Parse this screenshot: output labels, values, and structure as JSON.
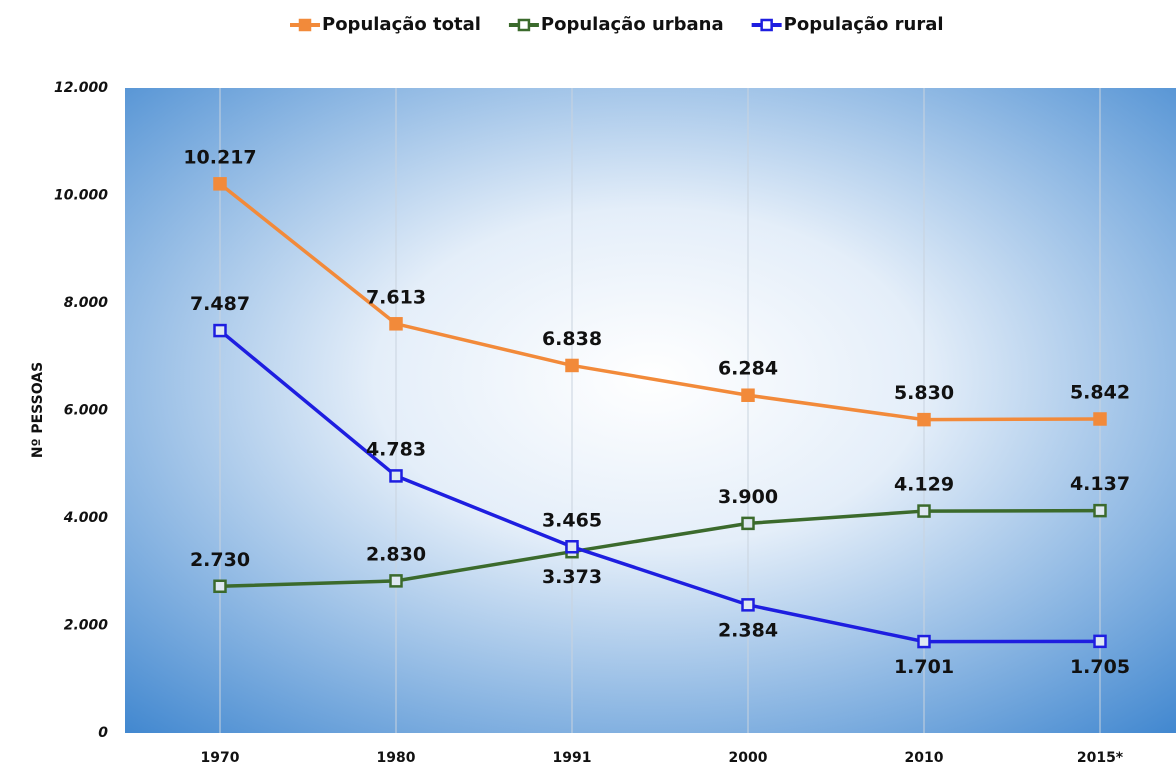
{
  "chart_data": {
    "type": "line",
    "y_label": "Nº PESSOAS",
    "categories": [
      "1970",
      "1980",
      "1991",
      "2000",
      "2010",
      "2015*"
    ],
    "series": [
      {
        "name": "População total",
        "color": "#f28a3a",
        "values": [
          10217,
          7613,
          6838,
          6284,
          5830,
          5842
        ],
        "value_labels": [
          "10.217",
          "7.613",
          "6.838",
          "6.284",
          "5.830",
          "5.842"
        ]
      },
      {
        "name": "População urbana",
        "color": "#3b6a2c",
        "values": [
          2730,
          2830,
          3373,
          3900,
          4129,
          4137
        ],
        "value_labels": [
          "2.730",
          "2.830",
          "3.373",
          "3.900",
          "4.129",
          "4.137"
        ]
      },
      {
        "name": "População rural",
        "color": "#1e1ee0",
        "values": [
          7487,
          4783,
          3465,
          2384,
          1701,
          1705
        ],
        "value_labels": [
          "7.487",
          "4.783",
          "3.465",
          "2.384",
          "1.701",
          "1.705"
        ]
      }
    ],
    "ylim": [
      0,
      12000
    ],
    "yticks": [
      {
        "value": 0,
        "label": "0"
      },
      {
        "value": 2000,
        "label": "2.000"
      },
      {
        "value": 4000,
        "label": "4.000"
      },
      {
        "value": 6000,
        "label": "6.000"
      },
      {
        "value": 8000,
        "label": "8.000"
      },
      {
        "value": 10000,
        "label": "10.000"
      },
      {
        "value": 12000,
        "label": "12.000"
      }
    ],
    "legend": "top"
  }
}
